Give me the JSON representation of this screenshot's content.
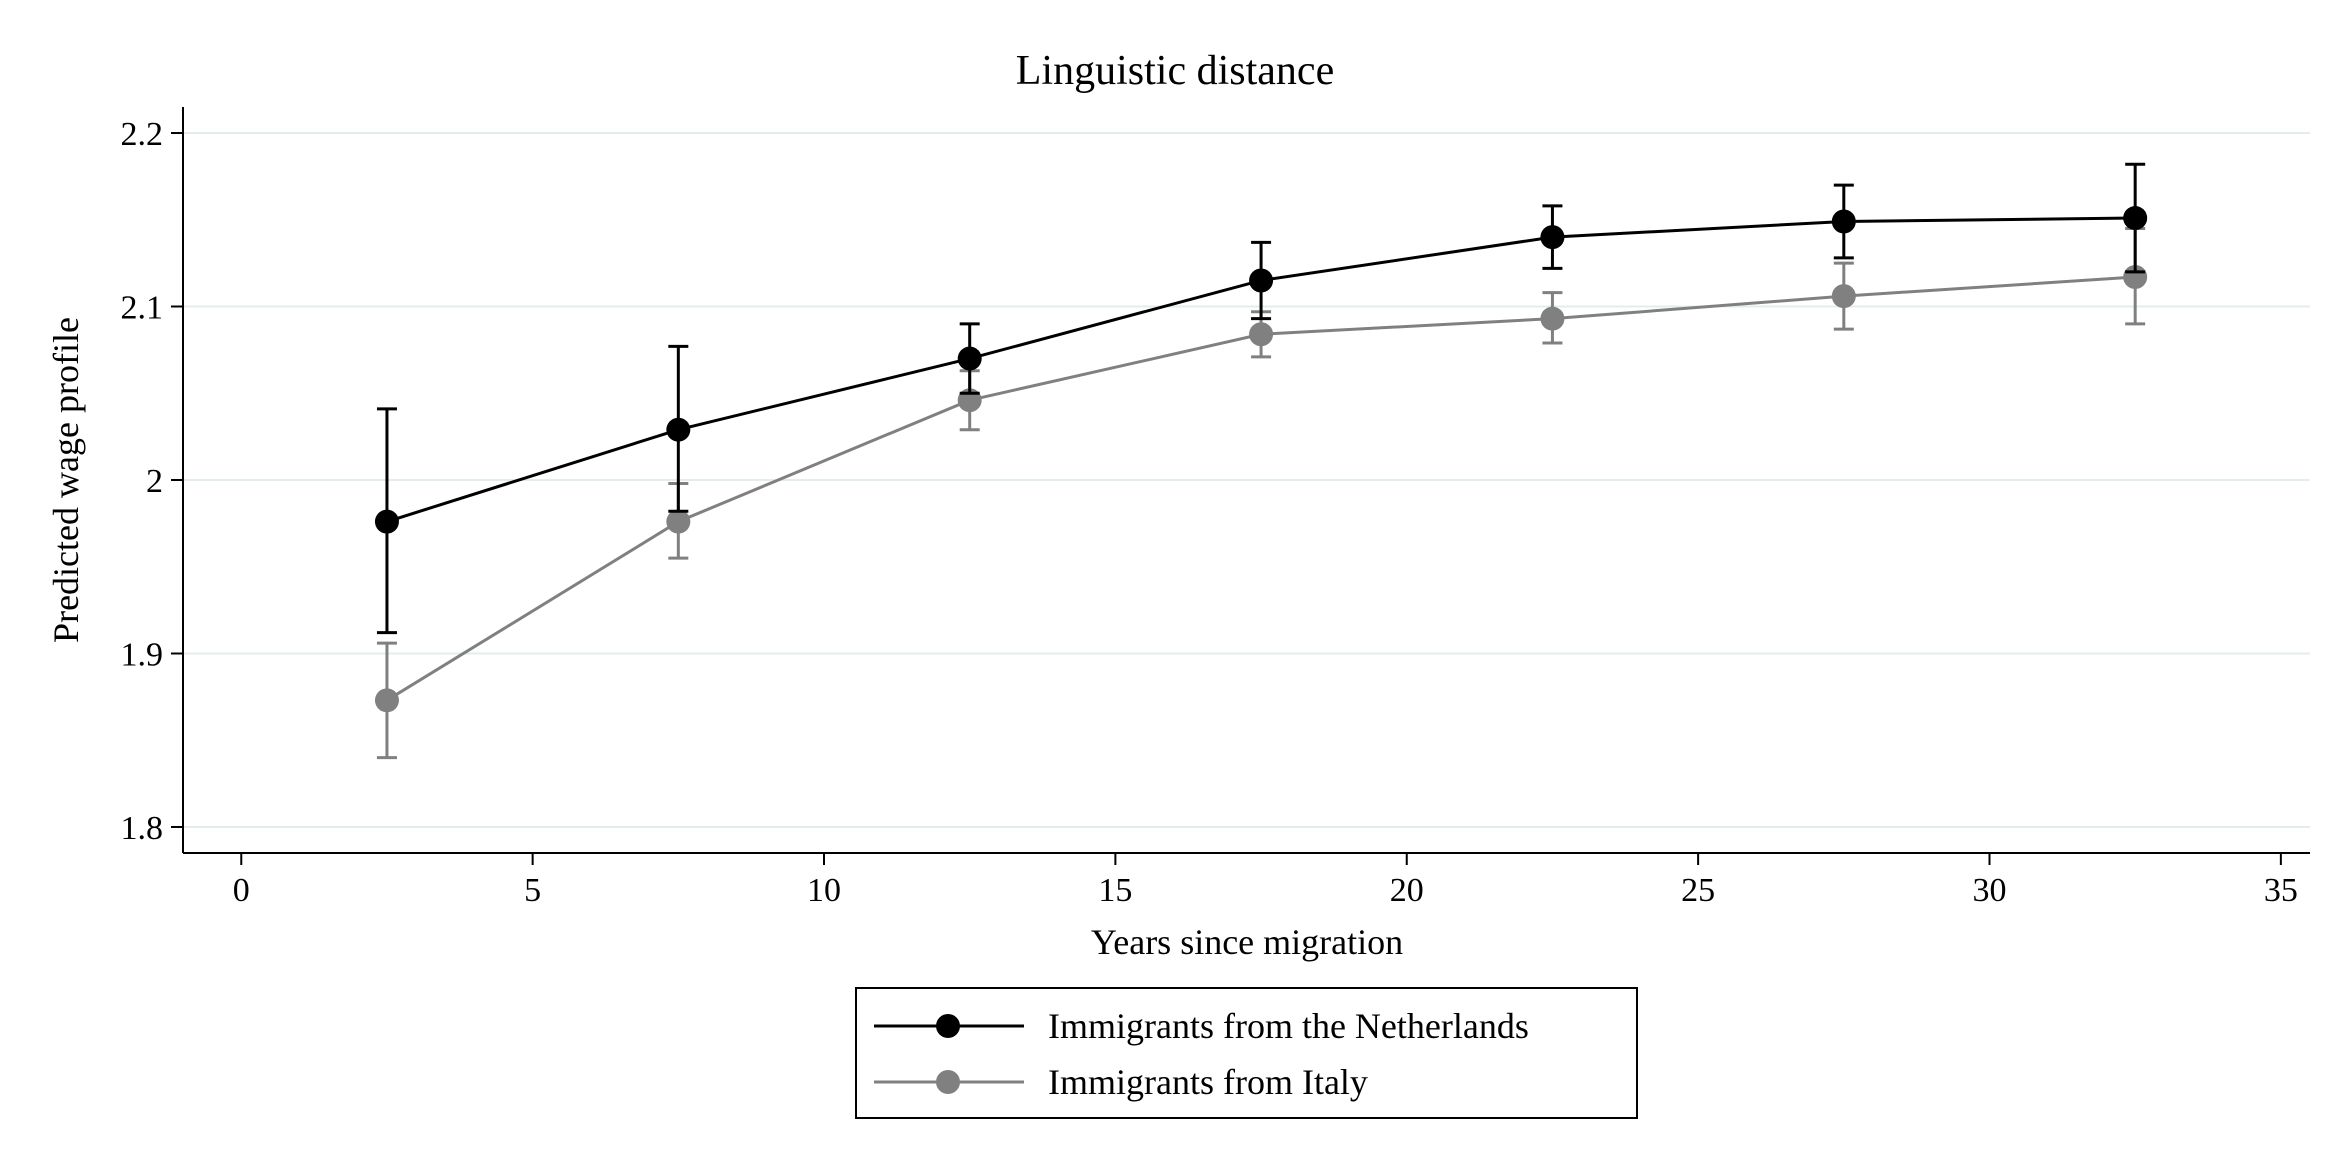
{
  "chart_data": {
    "type": "line",
    "title": "Linguistic distance",
    "xlabel": "Years since migration",
    "ylabel": "Predicted wage profile",
    "xlim": [
      -1,
      35.5
    ],
    "ylim": [
      1.785,
      2.215
    ],
    "xticks": [
      0,
      5,
      10,
      15,
      20,
      25,
      30,
      35
    ],
    "xtick_labels": [
      "0",
      "5",
      "10",
      "15",
      "20",
      "25",
      "30",
      "35"
    ],
    "yticks": [
      1.8,
      1.9,
      2.0,
      2.1,
      2.2
    ],
    "ytick_labels": [
      "1.8",
      "1.9",
      "2",
      "2.1",
      "2.2"
    ],
    "grid": true,
    "legend_position": "bottom",
    "x": [
      2.5,
      7.5,
      12.5,
      17.5,
      22.5,
      27.5,
      32.5
    ],
    "series": [
      {
        "name": "Immigrants from the Netherlands",
        "color": "#000000",
        "values": [
          1.976,
          2.029,
          2.07,
          2.115,
          2.14,
          2.149,
          2.151
        ],
        "ci_low": [
          1.912,
          1.982,
          2.05,
          2.093,
          2.122,
          2.128,
          2.12
        ],
        "ci_high": [
          2.041,
          2.077,
          2.09,
          2.137,
          2.158,
          2.17,
          2.182
        ]
      },
      {
        "name": "Immigrants from Italy",
        "color": "#808080",
        "values": [
          1.873,
          1.976,
          2.046,
          2.084,
          2.093,
          2.106,
          2.117
        ],
        "ci_low": [
          1.84,
          1.955,
          2.029,
          2.071,
          2.079,
          2.087,
          2.09
        ],
        "ci_high": [
          1.906,
          1.998,
          2.063,
          2.097,
          2.108,
          2.125,
          2.145
        ]
      }
    ]
  }
}
